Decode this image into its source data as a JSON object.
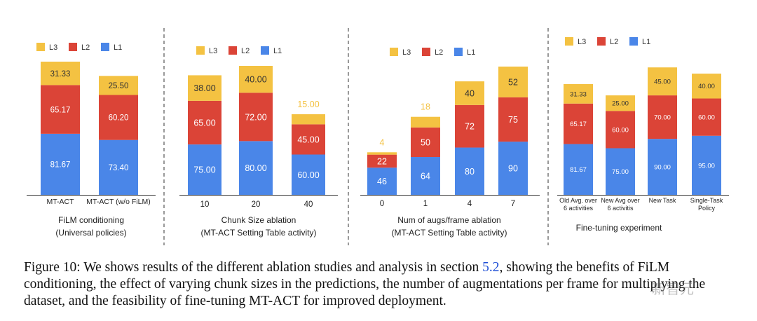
{
  "colors": {
    "L1": "#4a86e8",
    "L2": "#db4437",
    "L3": "#f4c242"
  },
  "chart_data": [
    {
      "type": "bar",
      "stacked": true,
      "title": "FiLM conditioning",
      "subtitle": "(Universal policies)",
      "legend": [
        "L3",
        "L2",
        "L1"
      ],
      "categories": [
        "MT-ACT",
        "MT-ACT (w/o FiLM)"
      ],
      "series": [
        {
          "name": "L1",
          "values": [
            81.67,
            73.4
          ]
        },
        {
          "name": "L2",
          "values": [
            65.17,
            60.2
          ]
        },
        {
          "name": "L3",
          "values": [
            31.33,
            25.5
          ]
        }
      ],
      "labels": {
        "L1": [
          "81.67",
          "73.40"
        ],
        "L2": [
          "65.17",
          "60.20"
        ],
        "L3": [
          "31.33",
          "25.50"
        ]
      }
    },
    {
      "type": "bar",
      "stacked": true,
      "title": "Chunk Size ablation",
      "subtitle": "(MT-ACT Setting Table activity)",
      "legend": [
        "L3",
        "L2",
        "L1"
      ],
      "categories": [
        "10",
        "20",
        "40"
      ],
      "series": [
        {
          "name": "L1",
          "values": [
            75.0,
            80.0,
            60.0
          ]
        },
        {
          "name": "L2",
          "values": [
            65.0,
            72.0,
            45.0
          ]
        },
        {
          "name": "L3",
          "values": [
            38.0,
            40.0,
            15.0
          ]
        }
      ],
      "labels": {
        "L1": [
          "75.00",
          "80.00",
          "60.00"
        ],
        "L2": [
          "65.00",
          "72.00",
          "45.00"
        ],
        "L3": [
          "38.00",
          "40.00",
          "15.00"
        ]
      }
    },
    {
      "type": "bar",
      "stacked": true,
      "title": "Num of augs/frame ablation",
      "subtitle": "(MT-ACT Setting Table activity)",
      "legend": [
        "L3",
        "L2",
        "L1"
      ],
      "categories": [
        "0",
        "1",
        "4",
        "7"
      ],
      "series": [
        {
          "name": "L1",
          "values": [
            46,
            64,
            80,
            90
          ]
        },
        {
          "name": "L2",
          "values": [
            22,
            50,
            72,
            75
          ]
        },
        {
          "name": "L3",
          "values": [
            4,
            18,
            40,
            52
          ]
        }
      ],
      "labels": {
        "L1": [
          "46",
          "64",
          "80",
          "90"
        ],
        "L2": [
          "22",
          "50",
          "72",
          "75"
        ],
        "L3": [
          "4",
          "18",
          "40",
          "52"
        ]
      }
    },
    {
      "type": "bar",
      "stacked": true,
      "title": "Fine-tuning experiment",
      "subtitle": "",
      "legend": [
        "L3",
        "L2",
        "L1"
      ],
      "categories": [
        [
          "Old Avg. over",
          "6 activities"
        ],
        [
          "New Avg over",
          "6 activitis"
        ],
        [
          "New Task"
        ],
        [
          "Single-Task",
          "Policy"
        ]
      ],
      "series": [
        {
          "name": "L1",
          "values": [
            81.67,
            75.0,
            90.0,
            95.0
          ]
        },
        {
          "name": "L2",
          "values": [
            65.17,
            60.0,
            70.0,
            60.0
          ]
        },
        {
          "name": "L3",
          "values": [
            31.33,
            25.0,
            45.0,
            40.0
          ]
        }
      ],
      "labels": {
        "L1": [
          "81.67",
          "75.00",
          "90.00",
          "95.00"
        ],
        "L2": [
          "65.17",
          "60.00",
          "70.00",
          "60.00"
        ],
        "L3": [
          "31.33",
          "25.00",
          "45.00",
          "40.00"
        ]
      }
    }
  ],
  "caption": {
    "prefix": "Figure 10: We shows results of the different ablation studies and analysis in section ",
    "section_ref": "5.2",
    "suffix": ", showing the benefits of FiLM conditioning, the effect of varying chunk sizes in the predictions, the number of augmentations per frame for multiplying the dataset, and the feasibility of fine-tuning MT-ACT for improved deployment."
  },
  "watermark": "新智元"
}
